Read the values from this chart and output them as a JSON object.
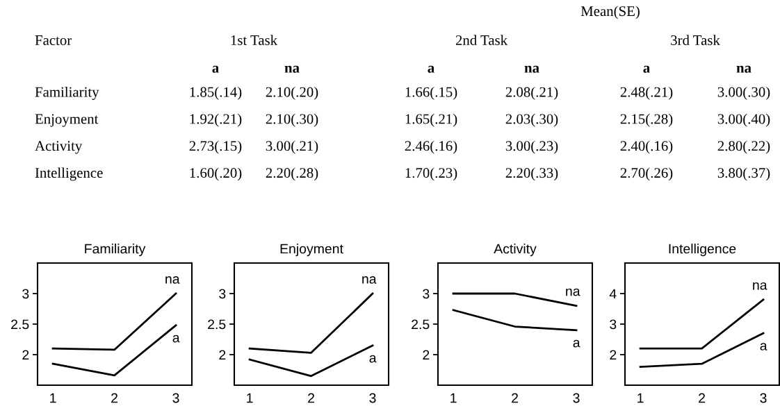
{
  "chart_data": [
    {
      "type": "other",
      "title": "Mean(SE)",
      "annotations": [
        "Factor",
        "1st Task",
        "2nd Task",
        "3rd Task"
      ],
      "categories": [
        "a",
        "na",
        "a",
        "na",
        "a",
        "na"
      ],
      "y_categories": [
        "Familiarity",
        "Enjoyment",
        "Activity",
        "Intelligence"
      ],
      "cell_labels": [
        [
          "1.85(.14)",
          "2.10(.20)",
          "1.66(.15)",
          "2.08(.21)",
          "2.48(.21)",
          "3.00(.30)"
        ],
        [
          "1.92(.21)",
          "2.10(.30)",
          "1.65(.21)",
          "2.03(.30)",
          "2.15(.28)",
          "3.00(.40)"
        ],
        [
          "2.73(.15)",
          "3.00(.21)",
          "2.46(.16)",
          "3.00(.23)",
          "2.40(.16)",
          "2.80(.22)"
        ],
        [
          "1.60(.20)",
          "2.20(.28)",
          "1.70(.23)",
          "2.20(.33)",
          "2.70(.26)",
          "3.80(.37)"
        ]
      ]
    },
    {
      "type": "line",
      "title": "Familiarity",
      "x": [
        1,
        2,
        3
      ],
      "xlim": [
        0.75,
        3.26
      ],
      "xticks": [
        1,
        2,
        3
      ],
      "ylim": [
        1.5,
        3.5
      ],
      "yticks": [
        2,
        2.5,
        3
      ],
      "grid": false,
      "legend": false,
      "series": [
        {
          "name": "a",
          "color": "#000000",
          "values": [
            1.85,
            1.66,
            2.48
          ]
        },
        {
          "name": "na",
          "color": "#000000",
          "values": [
            2.1,
            2.08,
            3.0
          ]
        }
      ]
    },
    {
      "type": "line",
      "title": "Enjoyment",
      "x": [
        1,
        2,
        3
      ],
      "xlim": [
        0.75,
        3.26
      ],
      "xticks": [
        1,
        2,
        3
      ],
      "ylim": [
        1.5,
        3.5
      ],
      "yticks": [
        2,
        2.5,
        3
      ],
      "grid": false,
      "legend": false,
      "series": [
        {
          "name": "a",
          "color": "#000000",
          "values": [
            1.92,
            1.65,
            2.15
          ]
        },
        {
          "name": "na",
          "color": "#000000",
          "values": [
            2.1,
            2.03,
            3.0
          ]
        }
      ]
    },
    {
      "type": "line",
      "title": "Activity",
      "x": [
        1,
        2,
        3
      ],
      "xlim": [
        0.75,
        3.26
      ],
      "xticks": [
        1,
        2,
        3
      ],
      "ylim": [
        1.5,
        3.5
      ],
      "yticks": [
        2,
        2.5,
        3
      ],
      "grid": false,
      "legend": false,
      "series": [
        {
          "name": "a",
          "color": "#000000",
          "values": [
            2.73,
            2.46,
            2.4
          ]
        },
        {
          "name": "na",
          "color": "#000000",
          "values": [
            3.0,
            3.0,
            2.8
          ]
        }
      ]
    },
    {
      "type": "line",
      "title": "Intelligence",
      "x": [
        1,
        2,
        3
      ],
      "xlim": [
        0.75,
        3.26
      ],
      "xticks": [
        1,
        2,
        3
      ],
      "ylim": [
        1,
        5
      ],
      "yticks": [
        2,
        3,
        4
      ],
      "grid": false,
      "legend": false,
      "series": [
        {
          "name": "a",
          "color": "#000000",
          "values": [
            1.6,
            1.7,
            2.7
          ]
        },
        {
          "name": "na",
          "color": "#000000",
          "values": [
            2.2,
            2.2,
            3.8
          ]
        }
      ]
    }
  ]
}
